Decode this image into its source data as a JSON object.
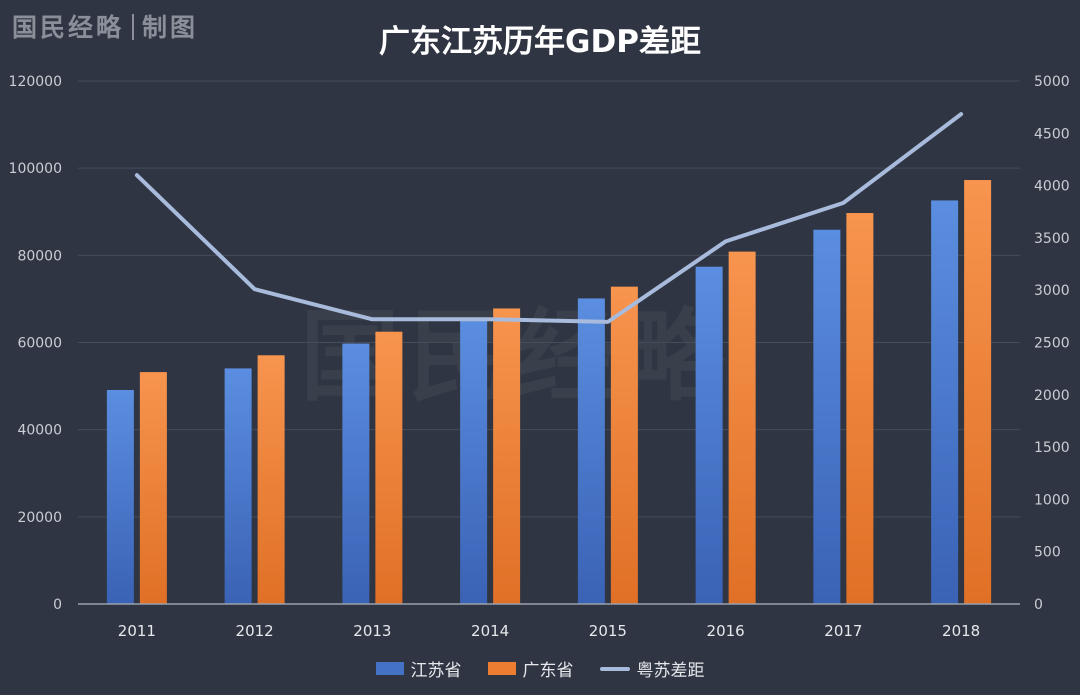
{
  "brand": {
    "name": "国民经略",
    "suffix": "制图"
  },
  "watermark": "国民经略",
  "chart_data": {
    "type": "bar",
    "title": "广东江苏历年GDP差距",
    "categories": [
      "2011",
      "2012",
      "2013",
      "2014",
      "2015",
      "2016",
      "2017",
      "2018"
    ],
    "series": [
      {
        "name": "江苏省",
        "kind": "bar",
        "axis": "left",
        "color": "#4472c4",
        "values": [
          49110,
          54058,
          59753,
          65088,
          70116,
          77388,
          85870,
          92595
        ]
      },
      {
        "name": "广东省",
        "kind": "bar",
        "axis": "left",
        "color": "#ed7d31",
        "values": [
          53210,
          57068,
          62475,
          67810,
          72813,
          80855,
          89705,
          97278
        ]
      },
      {
        "name": "粤苏差距",
        "kind": "line",
        "axis": "right",
        "color": "#a9bbdc",
        "values": [
          4100,
          3010,
          2722,
          2722,
          2697,
          3467,
          3835,
          4683
        ]
      }
    ],
    "left_axis": {
      "ylim": [
        0,
        120000
      ],
      "ticks": [
        "0",
        "20000",
        "40000",
        "60000",
        "80000",
        "100000",
        "120000"
      ]
    },
    "right_axis": {
      "ylim": [
        0,
        5000
      ],
      "ticks": [
        "0",
        "500",
        "1000",
        "1500",
        "2000",
        "2500",
        "3000",
        "3500",
        "4000",
        "4500",
        "5000"
      ]
    },
    "grid": true,
    "legend_position": "bottom-center"
  }
}
